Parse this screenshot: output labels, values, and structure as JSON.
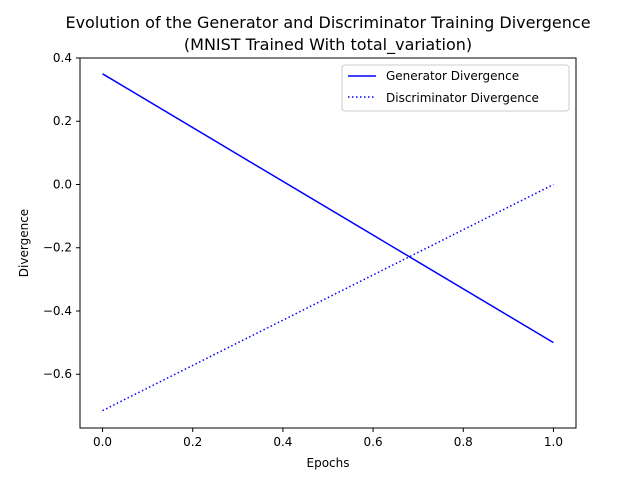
{
  "chart_data": {
    "type": "line",
    "title_line1": "Evolution of the Generator and Discriminator Training Divergence",
    "title_line2": "(MNIST Trained With total_variation)",
    "xlabel": "Epochs",
    "ylabel": "Divergence",
    "xlim": [
      -0.05,
      1.05
    ],
    "ylim": [
      -0.77,
      0.4
    ],
    "xticks": [
      0.0,
      0.2,
      0.4,
      0.6,
      0.8,
      1.0
    ],
    "xtick_labels": [
      "0.0",
      "0.2",
      "0.4",
      "0.6",
      "0.8",
      "1.0"
    ],
    "yticks": [
      0.4,
      0.2,
      0.0,
      -0.2,
      -0.4,
      -0.6
    ],
    "ytick_labels": [
      "0.4",
      "0.2",
      "0.0",
      "−0.2",
      "−0.4",
      "−0.6"
    ],
    "grid": false,
    "legend_position": "upper right",
    "series": [
      {
        "name": "Generator Divergence",
        "style": "solid",
        "color": "#0000ff",
        "x": [
          0.0,
          1.0
        ],
        "y": [
          0.35,
          -0.5
        ]
      },
      {
        "name": "Discriminator Divergence",
        "style": "dotted",
        "color": "#0000ff",
        "x": [
          0.0,
          1.0
        ],
        "y": [
          -0.715,
          0.0
        ]
      }
    ]
  }
}
